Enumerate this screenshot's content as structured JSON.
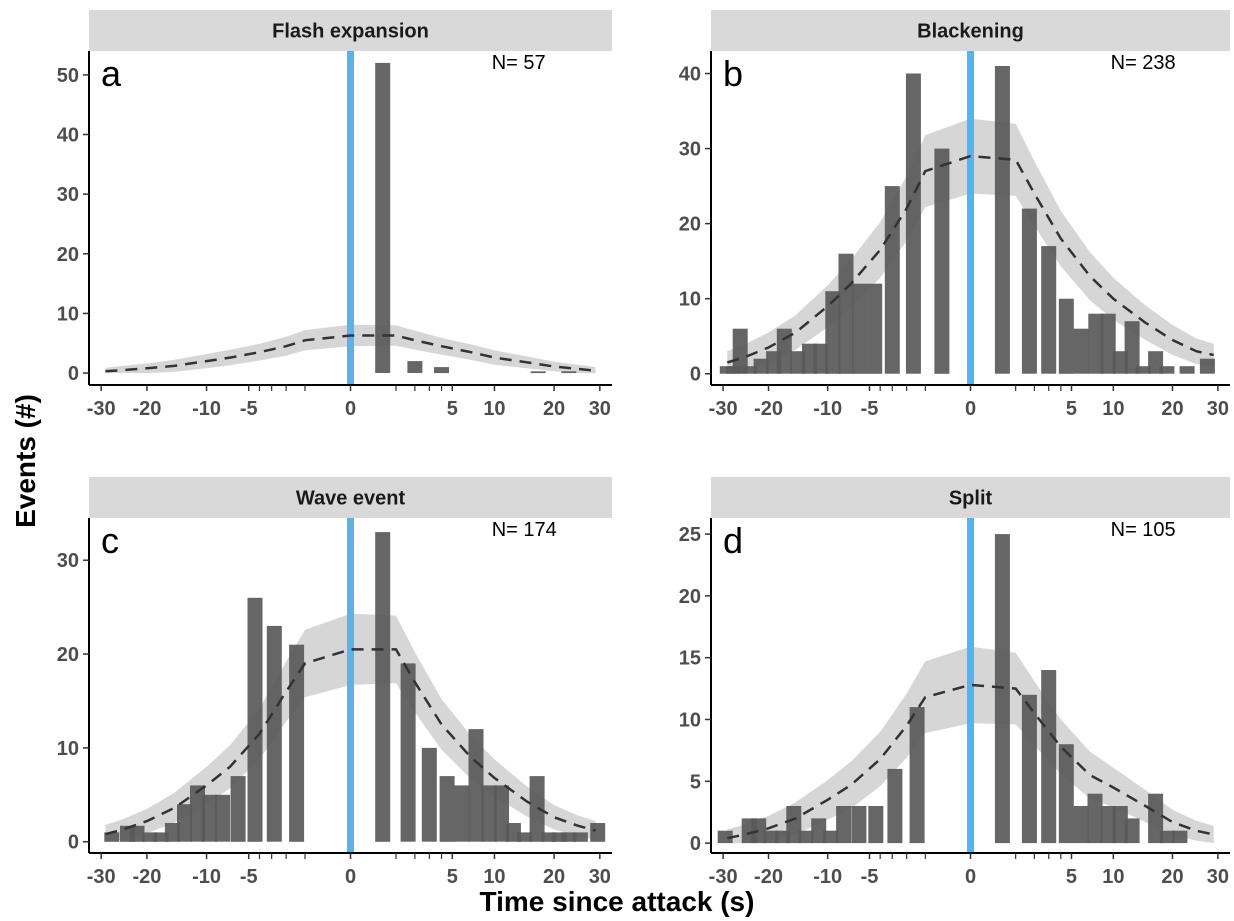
{
  "figure": {
    "ylabel": "Events (#)",
    "xlabel": "Time since attack (s)"
  },
  "colors": {
    "bar": "#595959",
    "attack_line": "#56B4E9",
    "ribbon": "#c8c8c8",
    "trend": "#333333",
    "strip": "#d9d9d9"
  },
  "chart_data": [
    {
      "type": "bar",
      "strip": "Flash expansion",
      "panel_label": "a",
      "n_label": "N= 57",
      "x_scale": "signed-sqrt",
      "xlim": [
        -32,
        32
      ],
      "ylim": [
        -2,
        54
      ],
      "xticks": [
        -30,
        -20,
        -10,
        -5,
        0,
        5,
        10,
        20,
        30
      ],
      "yticks": [
        0,
        10,
        20,
        30,
        40,
        50
      ],
      "bars": [
        [
          0.5,
          52
        ],
        [
          2,
          2
        ],
        [
          4,
          1
        ],
        [
          17,
          0.3
        ],
        [
          23,
          0.3
        ]
      ],
      "trend": {
        "x": [
          -29,
          -25,
          -20,
          -15,
          -10,
          -7,
          -4,
          -2,
          -1,
          0,
          1,
          2,
          4,
          7,
          10,
          15,
          20,
          25,
          29
        ],
        "y": [
          0.3,
          0.5,
          0.8,
          1.2,
          2.0,
          2.6,
          3.5,
          4.5,
          5.5,
          6.3,
          6.3,
          5.5,
          4.5,
          3.5,
          2.6,
          1.8,
          1.1,
          0.7,
          0.4
        ],
        "halfwidth": [
          0.6,
          0.7,
          0.8,
          1.0,
          1.2,
          1.3,
          1.4,
          1.6,
          1.7,
          1.8,
          1.7,
          1.6,
          1.4,
          1.3,
          1.2,
          1.0,
          0.8,
          0.7,
          0.6
        ]
      }
    },
    {
      "type": "bar",
      "strip": "Blackening",
      "panel_label": "b",
      "n_label": "N= 238",
      "x_scale": "signed-sqrt",
      "xlim": [
        -32,
        32
      ],
      "ylim": [
        -1.5,
        43
      ],
      "xticks": [
        -30,
        -20,
        -10,
        -5,
        0,
        5,
        10,
        20,
        30
      ],
      "yticks": [
        0,
        10,
        20,
        30,
        40
      ],
      "bars": [
        [
          -29.0,
          1
        ],
        [
          -27.5,
          1
        ],
        [
          -26.0,
          6
        ],
        [
          -24.0,
          1
        ],
        [
          -21.5,
          2
        ],
        [
          -19.0,
          3
        ],
        [
          -17.0,
          6
        ],
        [
          -14.6,
          3
        ],
        [
          -12.7,
          4
        ],
        [
          -11.0,
          4
        ],
        [
          -9.3,
          11
        ],
        [
          -7.6,
          16
        ],
        [
          -6.0,
          12
        ],
        [
          -4.5,
          12
        ],
        [
          -3.0,
          25
        ],
        [
          -1.6,
          40
        ],
        [
          -0.4,
          30
        ],
        [
          0.5,
          41
        ],
        [
          1.7,
          22
        ],
        [
          3.0,
          17
        ],
        [
          4.5,
          10
        ],
        [
          6.0,
          6
        ],
        [
          7.7,
          8
        ],
        [
          9.3,
          8
        ],
        [
          11.0,
          3
        ],
        [
          12.8,
          7
        ],
        [
          14.6,
          1
        ],
        [
          16.8,
          3
        ],
        [
          18.9,
          1
        ],
        [
          23.0,
          1
        ],
        [
          27.5,
          2
        ]
      ],
      "trend": {
        "x": [
          -29,
          -25,
          -20,
          -15,
          -10,
          -7,
          -4,
          -2,
          -1,
          0,
          1,
          2,
          4,
          7,
          10,
          15,
          20,
          25,
          29
        ],
        "y": [
          1.5,
          2.2,
          3.5,
          5.5,
          9.0,
          12.0,
          16.5,
          22.0,
          27.0,
          29.0,
          28.5,
          24.0,
          18.0,
          13.0,
          10.0,
          6.8,
          4.5,
          3.0,
          2.5
        ],
        "halfwidth": [
          1.5,
          1.7,
          2.0,
          2.3,
          2.8,
          3.2,
          3.7,
          4.3,
          4.8,
          5.0,
          4.8,
          4.3,
          3.7,
          3.2,
          2.8,
          2.3,
          2.0,
          1.7,
          1.5
        ]
      }
    },
    {
      "type": "bar",
      "strip": "Wave event",
      "panel_label": "c",
      "n_label": "N= 174",
      "x_scale": "signed-sqrt",
      "xlim": [
        -32,
        32
      ],
      "ylim": [
        -1.2,
        34.5
      ],
      "xticks": [
        -30,
        -20,
        -10,
        -5,
        0,
        5,
        10,
        20,
        30
      ],
      "yticks": [
        0,
        10,
        20,
        30
      ],
      "bars": [
        [
          -27.5,
          1
        ],
        [
          -24.0,
          1.7
        ],
        [
          -22.0,
          1.7
        ],
        [
          -19.5,
          1
        ],
        [
          -17.3,
          1
        ],
        [
          -15.3,
          2
        ],
        [
          -13.3,
          4
        ],
        [
          -11.3,
          6
        ],
        [
          -9.6,
          5
        ],
        [
          -7.9,
          5
        ],
        [
          -6.1,
          7
        ],
        [
          -4.4,
          26
        ],
        [
          -2.8,
          23
        ],
        [
          -1.4,
          21
        ],
        [
          0.5,
          33
        ],
        [
          1.6,
          19
        ],
        [
          3.0,
          10
        ],
        [
          4.5,
          7
        ],
        [
          6.0,
          6
        ],
        [
          7.6,
          12
        ],
        [
          9.3,
          6
        ],
        [
          11.0,
          6
        ],
        [
          12.8,
          2
        ],
        [
          14.6,
          1
        ],
        [
          16.8,
          7
        ],
        [
          19.0,
          1
        ],
        [
          21.0,
          1
        ],
        [
          23.0,
          1
        ],
        [
          25.5,
          1
        ],
        [
          29.5,
          2
        ]
      ],
      "trend": {
        "x": [
          -29,
          -25,
          -20,
          -15,
          -10,
          -7,
          -4,
          -2,
          -1,
          0,
          1,
          2,
          4,
          7,
          10,
          15,
          20,
          25,
          29
        ],
        "y": [
          0.8,
          1.3,
          2.2,
          3.6,
          6.0,
          8.0,
          11.5,
          16.0,
          19.0,
          20.5,
          20.5,
          17.0,
          12.5,
          9.0,
          6.8,
          4.3,
          2.6,
          1.7,
          1.2
        ],
        "halfwidth": [
          1.0,
          1.1,
          1.3,
          1.6,
          2.0,
          2.3,
          2.7,
          3.2,
          3.6,
          3.8,
          3.6,
          3.2,
          2.7,
          2.3,
          2.0,
          1.6,
          1.3,
          1.1,
          1.0
        ]
      }
    },
    {
      "type": "bar",
      "strip": "Split",
      "panel_label": "d",
      "n_label": "N= 105",
      "x_scale": "signed-sqrt",
      "xlim": [
        -32,
        32
      ],
      "ylim": [
        -0.8,
        26.3
      ],
      "xticks": [
        -30,
        -20,
        -10,
        -5,
        0,
        5,
        10,
        20,
        30
      ],
      "yticks": [
        0,
        5,
        10,
        15,
        20,
        25
      ],
      "bars": [
        [
          -29.5,
          1
        ],
        [
          -24.0,
          2
        ],
        [
          -22.0,
          2
        ],
        [
          -19.5,
          1
        ],
        [
          -17.3,
          1
        ],
        [
          -15.3,
          3
        ],
        [
          -13.3,
          1
        ],
        [
          -11.3,
          2
        ],
        [
          -9.6,
          1
        ],
        [
          -7.9,
          3
        ],
        [
          -6.1,
          3
        ],
        [
          -4.4,
          3
        ],
        [
          -2.8,
          6
        ],
        [
          -1.4,
          11
        ],
        [
          0.5,
          25
        ],
        [
          1.7,
          12
        ],
        [
          3.0,
          14
        ],
        [
          4.5,
          8
        ],
        [
          6.0,
          3
        ],
        [
          7.6,
          4
        ],
        [
          9.3,
          3
        ],
        [
          11.0,
          3
        ],
        [
          12.8,
          2
        ],
        [
          16.8,
          4
        ],
        [
          19.0,
          1
        ],
        [
          21.5,
          1
        ]
      ],
      "trend": {
        "x": [
          -29,
          -25,
          -20,
          -15,
          -10,
          -7,
          -4,
          -2,
          -1,
          0,
          1,
          2,
          4,
          7,
          10,
          15,
          20,
          25,
          29
        ],
        "y": [
          0.4,
          0.7,
          1.2,
          2.0,
          3.5,
          4.7,
          6.8,
          9.5,
          11.8,
          12.8,
          12.5,
          10.5,
          7.8,
          5.5,
          4.5,
          3.0,
          1.7,
          1.0,
          0.7
        ],
        "halfwidth": [
          0.7,
          0.8,
          1.0,
          1.3,
          1.6,
          1.9,
          2.2,
          2.6,
          2.9,
          3.1,
          2.9,
          2.6,
          2.2,
          1.9,
          1.6,
          1.3,
          1.0,
          0.8,
          0.7
        ]
      }
    }
  ]
}
